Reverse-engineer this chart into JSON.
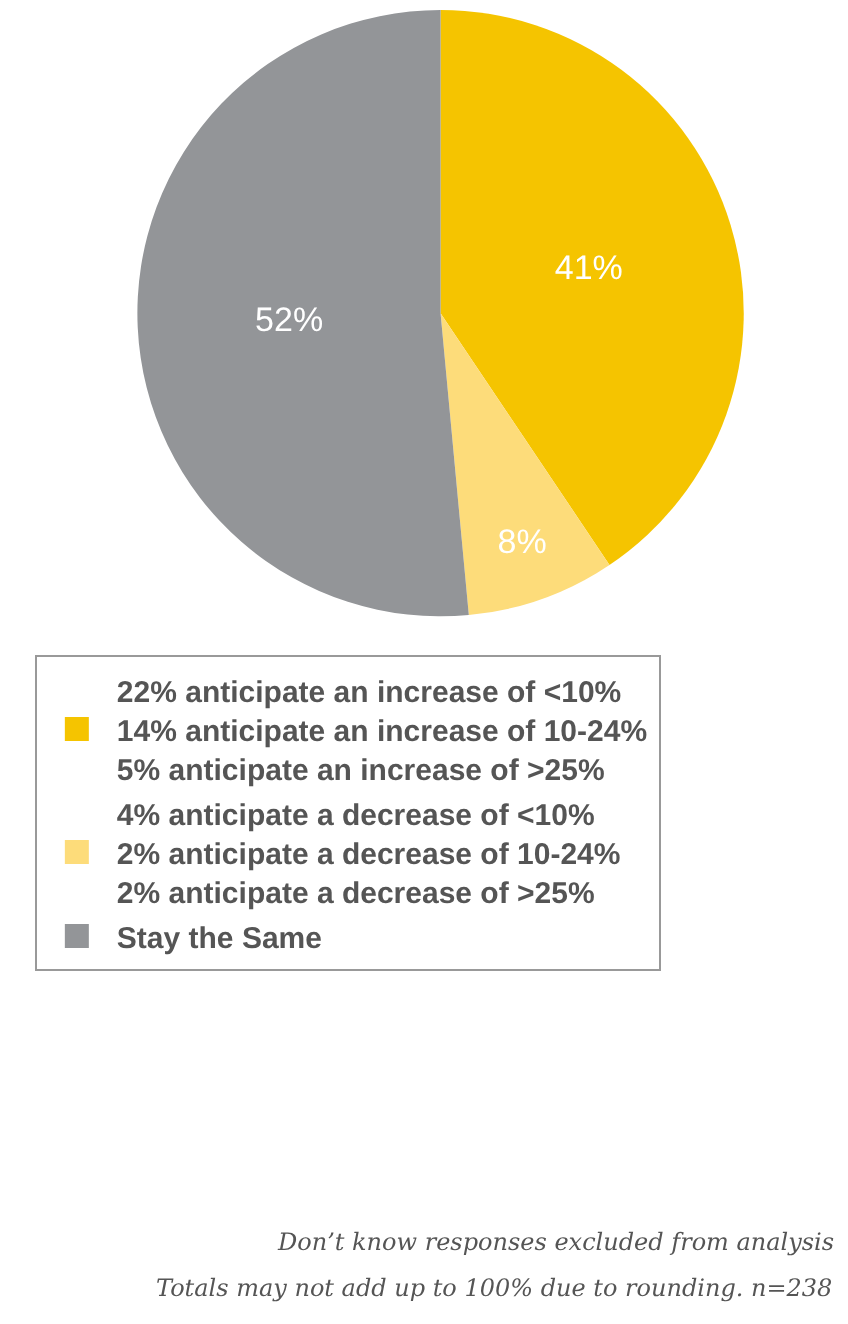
{
  "chart_data": {
    "type": "pie",
    "categories": [
      "22% anticipate an increase of <10%\n14% anticipate an increase of 10-24%\n5% anticipate an increase of >25%",
      "4% anticipate a decrease of <10%\n2% anticipate a decrease of 10-24%\n2% anticipate a decrease of >25%",
      "Stay the Same"
    ],
    "values": [
      41,
      8,
      52
    ],
    "value_labels": [
      "41%",
      "8%",
      "52%"
    ],
    "colors": [
      "#f5c400",
      "#fddc7a",
      "#939598"
    ],
    "legend": "bottom",
    "annotations": [
      "Don’t know responses excluded from analysis",
      "Totals may not add up to 100% due to rounding. n=238"
    ]
  }
}
